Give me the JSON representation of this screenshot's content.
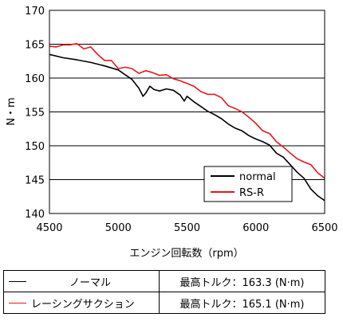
{
  "chart_data": {
    "type": "line",
    "xlabel": "エンジン回転数（rpm）",
    "ylabel": "N・m",
    "xlim": [
      4500,
      6500
    ],
    "ylim": [
      140,
      170
    ],
    "xticks": [
      "4500",
      "5000",
      "5500",
      "6000",
      "6500"
    ],
    "yticks": [
      "140",
      "145",
      "150",
      "155",
      "160",
      "165",
      "170"
    ],
    "grid": "horizontal",
    "legend_position": "bottom-right",
    "series": [
      {
        "name": "normal",
        "color": "#000000",
        "x": [
          4500,
          4600,
          4700,
          4800,
          4900,
          5000,
          5050,
          5100,
          5150,
          5180,
          5200,
          5230,
          5260,
          5300,
          5350,
          5400,
          5450,
          5480,
          5500,
          5550,
          5600,
          5650,
          5700,
          5750,
          5800,
          5850,
          5900,
          5950,
          6000,
          6050,
          6100,
          6150,
          6200,
          6250,
          6300,
          6350,
          6400,
          6450,
          6500
        ],
        "y": [
          163.5,
          163,
          162.7,
          162.3,
          161.8,
          161.2,
          160.5,
          159.8,
          158.5,
          157.3,
          157.8,
          158.8,
          158.3,
          158.1,
          158.4,
          158.2,
          157.5,
          156.6,
          157.3,
          156.5,
          155.8,
          155.1,
          154.6,
          154,
          153.2,
          152.6,
          152.2,
          151.5,
          151,
          150.6,
          150.1,
          148.9,
          148.3,
          147.2,
          146.1,
          145.2,
          143.6,
          142.6,
          141.9
        ]
      },
      {
        "name": "RS-R",
        "color": "#e8161d",
        "x": [
          4500,
          4550,
          4600,
          4650,
          4700,
          4750,
          4800,
          4850,
          4900,
          4950,
          5000,
          5050,
          5100,
          5150,
          5200,
          5250,
          5300,
          5350,
          5400,
          5450,
          5500,
          5550,
          5600,
          5650,
          5700,
          5750,
          5800,
          5850,
          5900,
          5950,
          6000,
          6050,
          6100,
          6150,
          6200,
          6250,
          6300,
          6350,
          6400,
          6450,
          6500
        ],
        "y": [
          164.7,
          164.6,
          164.9,
          164.9,
          165.1,
          164.3,
          164.6,
          163.5,
          162.6,
          162.6,
          161.4,
          161.6,
          161.4,
          160.7,
          161.1,
          160.8,
          160.4,
          160.5,
          159.9,
          159.6,
          159.2,
          158.8,
          158,
          157.6,
          157.6,
          157.1,
          155.9,
          155.5,
          155,
          154.2,
          153.3,
          152.2,
          151.8,
          150.6,
          149.8,
          148.9,
          148.1,
          147.6,
          147.2,
          146,
          145.2
        ]
      }
    ]
  },
  "summary_table": {
    "rows": [
      {
        "label": "ノーマル",
        "value": "最高トルク：163.3 (N·m)",
        "line_color": "#000000"
      },
      {
        "label": "レーシングサクション",
        "value": "最高トルク：165.1 (N·m)",
        "line_color": "#e8161d"
      }
    ]
  }
}
